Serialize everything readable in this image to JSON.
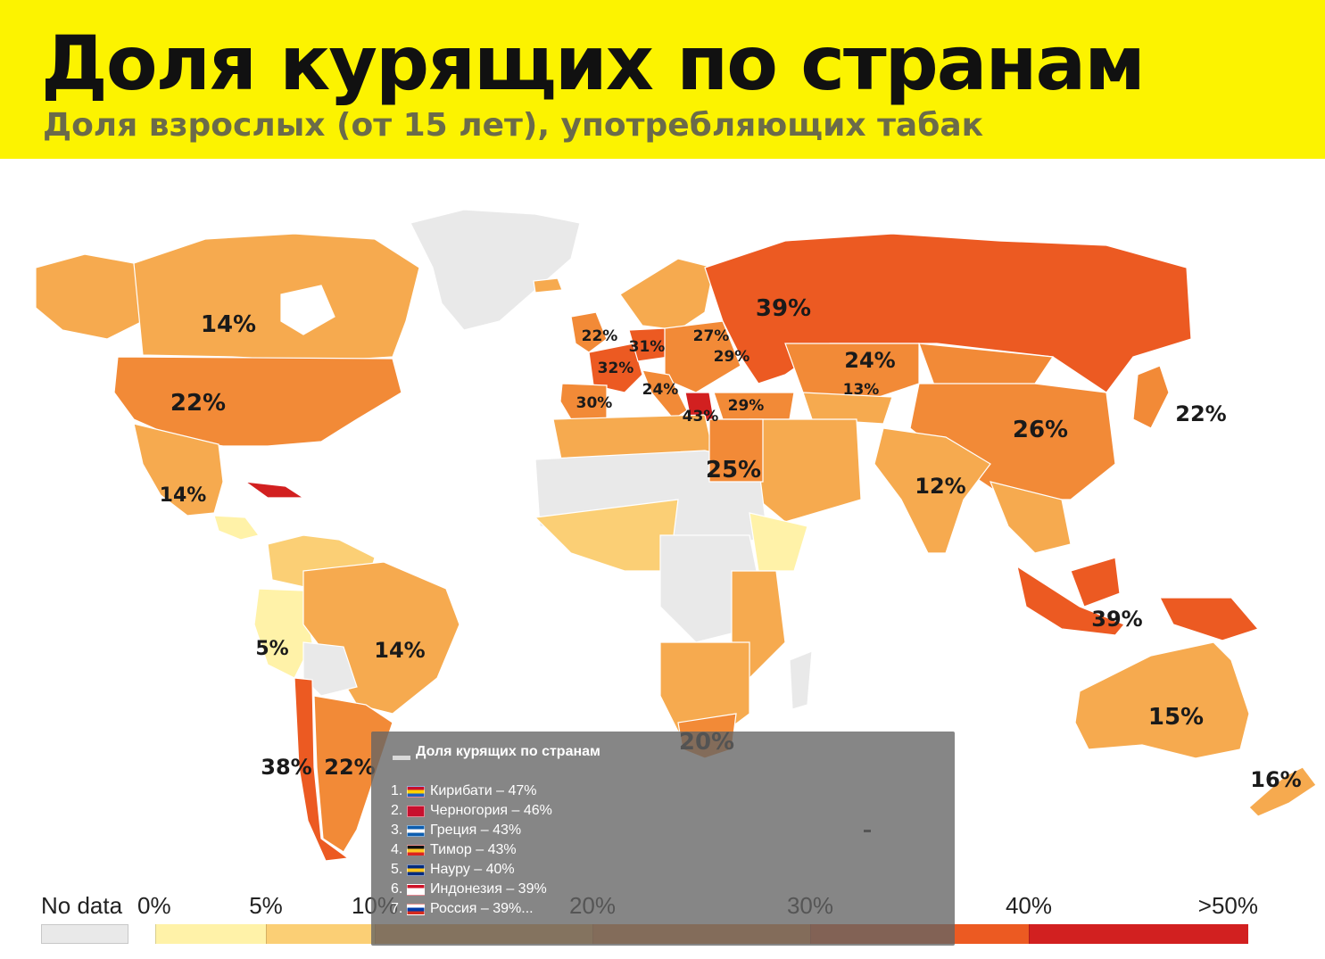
{
  "header": {
    "title": "Доля курящих по странам",
    "subtitle": "Доля взрослых (от 15 лет), употребляющих табак",
    "background": "#fcf300"
  },
  "map": {
    "colors": {
      "no_data": "#e9e9e9",
      "band_0_5": "#fff2a8",
      "band_5_10": "#fbcf75",
      "band_10_20": "#f6aa4f",
      "band_20_30": "#f28a37",
      "band_30_40": "#ec5a22",
      "band_40_plus": "#d22020",
      "ocean": "#ffffff"
    },
    "labels": [
      {
        "id": "canada",
        "text": "14%"
      },
      {
        "id": "usa",
        "text": "22%"
      },
      {
        "id": "mexico",
        "text": "14%"
      },
      {
        "id": "peru",
        "text": "5%"
      },
      {
        "id": "brazil",
        "text": "14%"
      },
      {
        "id": "chile",
        "text": "38%"
      },
      {
        "id": "argentina",
        "text": "22%"
      },
      {
        "id": "uk",
        "text": "22%"
      },
      {
        "id": "germany",
        "text": "31%"
      },
      {
        "id": "france",
        "text": "32%"
      },
      {
        "id": "spain",
        "text": "30%"
      },
      {
        "id": "italy",
        "text": "24%"
      },
      {
        "id": "greece",
        "text": "43%"
      },
      {
        "id": "belarus",
        "text": "27%"
      },
      {
        "id": "ukraine",
        "text": "29%"
      },
      {
        "id": "turkey",
        "text": "29%"
      },
      {
        "id": "russia",
        "text": "39%"
      },
      {
        "id": "kazakhstan",
        "text": "24%"
      },
      {
        "id": "uzbekistan",
        "text": "13%"
      },
      {
        "id": "china",
        "text": "26%"
      },
      {
        "id": "japan",
        "text": "22%"
      },
      {
        "id": "india",
        "text": "12%"
      },
      {
        "id": "egypt",
        "text": "25%"
      },
      {
        "id": "indonesia",
        "text": "39%"
      },
      {
        "id": "south_africa",
        "text": "20%"
      },
      {
        "id": "australia",
        "text": "15%"
      },
      {
        "id": "new_zealand",
        "text": "16%"
      }
    ]
  },
  "legend": {
    "no_data": "No data",
    "ticks": [
      "0%",
      "5%",
      "10%",
      "20%",
      "30%",
      "40%",
      ">50%"
    ],
    "colors": [
      "#fff2a8",
      "#fbcf75",
      "#f6aa4f",
      "#f28a37",
      "#ec5a22",
      "#d22020",
      "#c8102e"
    ]
  },
  "popup": {
    "title": "Доля курящих по странам",
    "items": [
      {
        "num": "1.",
        "text": "Кирибати – 47%",
        "flag": [
          "#c8102e",
          "#ffd100",
          "#1f5fbf"
        ]
      },
      {
        "num": "2.",
        "text": "Черногория – 46%",
        "flag": [
          "#c8102e",
          "#c8102e",
          "#c8102e"
        ]
      },
      {
        "num": "3.",
        "text": "Греция – 43%",
        "flag": [
          "#0d5eaf",
          "#ffffff",
          "#0d5eaf"
        ]
      },
      {
        "num": "4.",
        "text": "Тимор – 43%",
        "flag": [
          "#111111",
          "#ffc726",
          "#dc241f"
        ]
      },
      {
        "num": "5.",
        "text": "Науру – 40%",
        "flag": [
          "#002b7f",
          "#ffc61e",
          "#002b7f"
        ]
      },
      {
        "num": "6.",
        "text": "Индонезия – 39%",
        "flag": [
          "#ce1126",
          "#ffffff",
          "#ffffff"
        ]
      },
      {
        "num": "7.",
        "text": "Россия – 39%...",
        "flag": [
          "#ffffff",
          "#0039a6",
          "#d52b1e"
        ]
      }
    ]
  }
}
